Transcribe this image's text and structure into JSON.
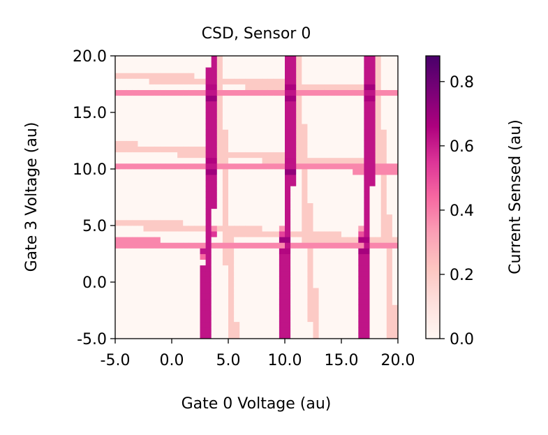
{
  "chart_data": {
    "type": "heatmap",
    "title": "CSD, Sensor 0",
    "xlabel": "Gate 0 Voltage (au)",
    "ylabel": "Gate 3 Voltage (au)",
    "xlim": [
      -5.0,
      20.0
    ],
    "ylim": [
      -5.0,
      20.0
    ],
    "x_ticks": [
      "-5.0",
      "0.0",
      "5.0",
      "10.0",
      "15.0",
      "20.0"
    ],
    "y_ticks": [
      "-5.0",
      "0.0",
      "5.0",
      "10.0",
      "15.0",
      "20.0"
    ],
    "grid_size": 50,
    "colormap": {
      "name": "RdPu",
      "stops": [
        "#fff7f3",
        "#fde0dd",
        "#fcc5c0",
        "#fa9fb5",
        "#f768a1",
        "#dd3497",
        "#ae017e",
        "#7a0177",
        "#49006a"
      ],
      "vmin": 0.0,
      "vmax": 0.88
    },
    "colorbar": {
      "label": "Current Sensed (au)",
      "ticks": [
        "0.0",
        "0.2",
        "0.4",
        "0.6",
        "0.8"
      ],
      "tick_values": [
        0.0,
        0.2,
        0.4,
        0.6,
        0.8
      ]
    },
    "structure": {
      "vertical_lines": [
        {
          "x_bottom": 3.0,
          "x_top": 3.7,
          "intensity": 0.62
        },
        {
          "x_bottom": 10.0,
          "x_top": 10.6,
          "intensity": 0.62
        },
        {
          "x_bottom": 17.0,
          "x_top": 17.6,
          "intensity": 0.62
        }
      ],
      "secondary_vertical_lines": [
        {
          "x_bottom": 5.5,
          "x_top": 4.0,
          "intensity": 0.2
        },
        {
          "x_bottom": 12.7,
          "x_top": 11.0,
          "intensity": 0.2
        },
        {
          "x_bottom": 19.6,
          "x_top": 18.0,
          "intensity": 0.2
        }
      ],
      "horizontal_lines": [
        {
          "y_left": 3.5,
          "y_right": 3.2,
          "intensity": 0.38
        },
        {
          "y_left": 10.3,
          "y_right": 10.0,
          "intensity": 0.38
        },
        {
          "y_left": 16.6,
          "y_right": 16.8,
          "intensity": 0.38
        }
      ],
      "secondary_horizontal_lines": [
        {
          "y_left": 5.3,
          "y_right": 3.5,
          "intensity": 0.2
        },
        {
          "y_left": 12.0,
          "y_right": 10.3,
          "intensity": 0.2
        },
        {
          "y_left": 18.3,
          "y_right": 16.8,
          "intensity": 0.2
        }
      ],
      "triple_points_peak": 0.85
    }
  }
}
